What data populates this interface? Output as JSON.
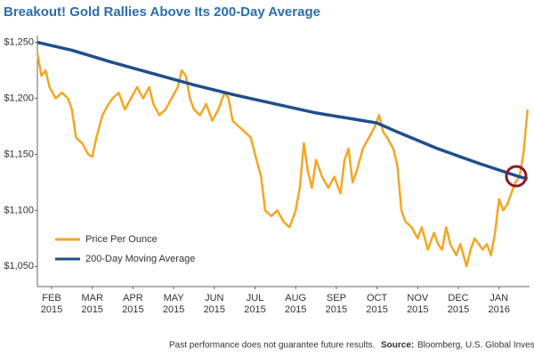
{
  "chart_data": {
    "type": "line",
    "title": "Breakout! Gold Rallies Above Its 200-Day Average",
    "note": "Past performance does not guarantee future results.",
    "source_label": "Source:",
    "source": "Bloomberg, U.S. Global Investors",
    "xlim": [
      0.15,
      12.25
    ],
    "ylim": [
      1032,
      1256
    ],
    "xticks": [
      {
        "value": 0.5,
        "label": "FEB 2015"
      },
      {
        "value": 1.5,
        "label": "MAR 2015"
      },
      {
        "value": 2.5,
        "label": "APR 2015"
      },
      {
        "value": 3.5,
        "label": "MAY 2015"
      },
      {
        "value": 4.5,
        "label": "JUN 2015"
      },
      {
        "value": 5.5,
        "label": "JUL 2015"
      },
      {
        "value": 6.5,
        "label": "AUG 2015"
      },
      {
        "value": 7.5,
        "label": "SEP 2015"
      },
      {
        "value": 8.5,
        "label": "OCT 2015"
      },
      {
        "value": 9.5,
        "label": "NOV 2015"
      },
      {
        "value": 10.5,
        "label": "DEC 2015"
      },
      {
        "value": 11.5,
        "label": "JAN 2016"
      }
    ],
    "yticks": [
      {
        "value": 1050,
        "label": "$1,050"
      },
      {
        "value": 1100,
        "label": "$1,100"
      },
      {
        "value": 1150,
        "label": "$1,150"
      },
      {
        "value": 1200,
        "label": "$1,200"
      },
      {
        "value": 1250,
        "label": "$1,250"
      }
    ],
    "series": [
      {
        "name": "Price Per Ounce",
        "color": "#f5a623",
        "x": [
          0.15,
          0.25,
          0.35,
          0.45,
          0.6,
          0.75,
          0.9,
          1.0,
          1.1,
          1.25,
          1.4,
          1.5,
          1.6,
          1.75,
          1.9,
          2.0,
          2.15,
          2.3,
          2.45,
          2.6,
          2.75,
          2.9,
          3.0,
          3.15,
          3.3,
          3.45,
          3.6,
          3.7,
          3.8,
          3.9,
          4.0,
          4.15,
          4.3,
          4.45,
          4.6,
          4.75,
          4.85,
          4.95,
          5.1,
          5.25,
          5.4,
          5.5,
          5.65,
          5.75,
          5.9,
          6.05,
          6.2,
          6.35,
          6.5,
          6.6,
          6.7,
          6.8,
          6.9,
          7.0,
          7.15,
          7.3,
          7.45,
          7.6,
          7.7,
          7.8,
          7.9,
          8.0,
          8.15,
          8.3,
          8.45,
          8.55,
          8.65,
          8.75,
          8.9,
          9.0,
          9.1,
          9.2,
          9.35,
          9.5,
          9.6,
          9.75,
          9.9,
          10.0,
          10.1,
          10.2,
          10.3,
          10.45,
          10.55,
          10.7,
          10.8,
          10.9,
          11.0,
          11.1,
          11.2,
          11.3,
          11.4,
          11.5,
          11.6,
          11.7,
          11.8,
          11.9,
          12.0,
          12.1,
          12.2
        ],
        "values": [
          1240,
          1220,
          1225,
          1210,
          1200,
          1205,
          1200,
          1190,
          1165,
          1160,
          1150,
          1148,
          1165,
          1185,
          1195,
          1200,
          1205,
          1190,
          1200,
          1210,
          1200,
          1210,
          1195,
          1185,
          1190,
          1200,
          1210,
          1225,
          1220,
          1200,
          1190,
          1185,
          1195,
          1180,
          1190,
          1205,
          1200,
          1180,
          1175,
          1170,
          1165,
          1150,
          1130,
          1100,
          1095,
          1100,
          1090,
          1085,
          1100,
          1120,
          1160,
          1135,
          1120,
          1145,
          1130,
          1120,
          1130,
          1115,
          1145,
          1155,
          1125,
          1135,
          1155,
          1165,
          1175,
          1185,
          1170,
          1165,
          1155,
          1140,
          1100,
          1090,
          1085,
          1075,
          1085,
          1065,
          1080,
          1070,
          1065,
          1085,
          1070,
          1060,
          1070,
          1050,
          1065,
          1075,
          1070,
          1065,
          1070,
          1060,
          1080,
          1110,
          1100,
          1105,
          1115,
          1125,
          1130,
          1150,
          1190
        ]
      },
      {
        "name": "200-Day Moving Average",
        "color": "#1f4e8c",
        "x": [
          0.15,
          1,
          2,
          3,
          4,
          5,
          6,
          7,
          8,
          8.5,
          9,
          10,
          11,
          12,
          12.2
        ],
        "values": [
          1250,
          1243,
          1232,
          1222,
          1212,
          1203,
          1195,
          1187,
          1181,
          1178,
          1170,
          1155,
          1142,
          1130,
          1128
        ]
      }
    ]
  }
}
